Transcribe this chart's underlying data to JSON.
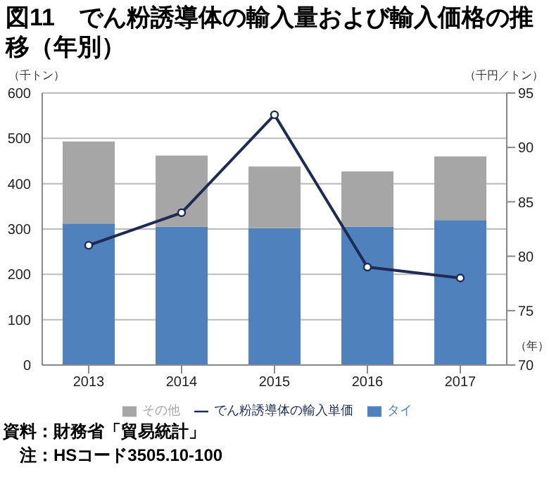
{
  "chart_data": {
    "type": "bar",
    "title": "図11　でん粉誘導体の輸入量および輸入価格の推移（年別）",
    "xlabel": "（年）",
    "ylabel": "（千トン）",
    "y2label": "（千円／トン）",
    "categories": [
      "2013",
      "2014",
      "2015",
      "2016",
      "2017"
    ],
    "stacked": true,
    "series": [
      {
        "name": "タイ",
        "color": "#4f81bd",
        "values": [
          312,
          305,
          302,
          305,
          320
        ]
      },
      {
        "name": "その他",
        "color": "#a6a6a6",
        "values": [
          181,
          157,
          136,
          122,
          140
        ]
      },
      {
        "name": "でん粉誘導体の輸入単価",
        "type": "line",
        "axis": "y2",
        "color": "#1f2a55",
        "values": [
          81,
          84,
          93,
          79,
          78
        ]
      }
    ],
    "ylim": [
      0,
      600
    ],
    "yticks": [
      0,
      100,
      200,
      300,
      400,
      500,
      600
    ],
    "y2lim": [
      70,
      95
    ],
    "y2ticks": [
      70,
      75,
      80,
      85,
      90,
      95
    ],
    "grid": "y",
    "legend": "bottom",
    "marker": "circle",
    "annotations": [
      "資料：財務省「貿易統計」",
      "注：HSコード3505.10-100"
    ]
  }
}
